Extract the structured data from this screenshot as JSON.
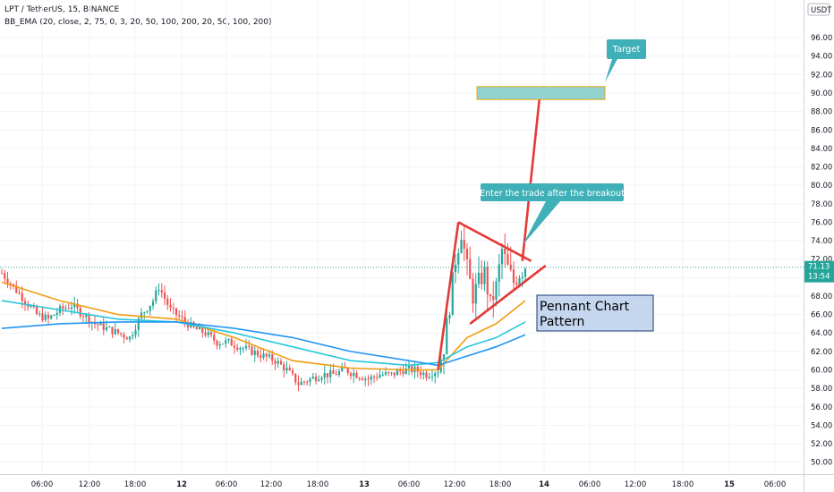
{
  "chart_data": {
    "type": "candlestick",
    "symbol_line": "LPT / TetherUS, 15, BINANCE",
    "indicator_line": "BB_EMA (20, close, 2, 75, 0, 3, 20, 50, 100, 200, 20, 50, 100, 200)",
    "currency": "USDT",
    "y_ticks": [
      "96.00",
      "94.00",
      "92.00",
      "90.00",
      "88.00",
      "86.00",
      "84.00",
      "82.00",
      "80.00",
      "78.00",
      "76.00",
      "74.00",
      "72.00",
      "70.00",
      "68.00",
      "66.00",
      "64.00",
      "62.00",
      "60.00",
      "58.00",
      "56.00",
      "54.00",
      "52.00",
      "50.00"
    ],
    "ylim": [
      49,
      99.5
    ],
    "x_ticks": [
      "06:00",
      "12:00",
      "18:00",
      "12",
      "06:00",
      "12:00",
      "18:00",
      "13",
      "06:00",
      "12:00",
      "18:00",
      "14",
      "06:00",
      "12:00",
      "18:00",
      "15",
      "06:00"
    ],
    "x_tick_index": [
      0,
      1,
      2,
      3,
      4,
      5,
      6,
      7,
      8,
      9,
      10,
      11,
      12,
      13,
      14,
      15,
      16
    ],
    "last_price": "71.13",
    "countdown": "13:54",
    "price_path": [
      [
        0,
        70.5
      ],
      [
        4,
        69.0
      ],
      [
        8,
        67.5
      ],
      [
        12,
        66.0
      ],
      [
        16,
        65.5
      ],
      [
        20,
        66.5
      ],
      [
        24,
        67.0
      ],
      [
        28,
        66.0
      ],
      [
        32,
        65.0
      ],
      [
        36,
        64.5
      ],
      [
        40,
        64.0
      ],
      [
        44,
        63.5
      ],
      [
        48,
        66.0
      ],
      [
        52,
        67.5
      ],
      [
        54,
        69.0
      ],
      [
        58,
        66.5
      ],
      [
        62,
        65.5
      ],
      [
        66,
        64.5
      ],
      [
        70,
        64.0
      ],
      [
        74,
        63.0
      ],
      [
        78,
        63.0
      ],
      [
        82,
        62.5
      ],
      [
        86,
        62.0
      ],
      [
        90,
        61.5
      ],
      [
        94,
        61.0
      ],
      [
        98,
        60.0
      ],
      [
        102,
        58.5
      ],
      [
        106,
        59.0
      ],
      [
        110,
        59.5
      ],
      [
        114,
        59.5
      ],
      [
        118,
        60.0
      ],
      [
        122,
        59.5
      ],
      [
        126,
        59.0
      ],
      [
        130,
        59.5
      ],
      [
        134,
        59.5
      ],
      [
        138,
        60.0
      ],
      [
        142,
        60.0
      ],
      [
        146,
        59.5
      ],
      [
        150,
        60.0
      ],
      [
        152,
        62.5
      ],
      [
        154,
        67.0
      ],
      [
        156,
        72.0
      ],
      [
        158,
        75.0
      ],
      [
        160,
        71.0
      ],
      [
        162,
        68.0
      ],
      [
        164,
        69.5
      ],
      [
        166,
        70.5
      ],
      [
        168,
        67.0
      ],
      [
        170,
        69.0
      ],
      [
        172,
        73.0
      ],
      [
        174,
        71.0
      ],
      [
        176,
        69.5
      ],
      [
        178,
        70.5
      ],
      [
        180,
        71.13
      ]
    ],
    "ema_series": [
      {
        "color": "#f39c12",
        "values": [
          [
            0,
            69.5
          ],
          [
            20,
            67.5
          ],
          [
            40,
            66.0
          ],
          [
            60,
            65.5
          ],
          [
            80,
            63.5
          ],
          [
            100,
            61.0
          ],
          [
            120,
            60.2
          ],
          [
            140,
            60.0
          ],
          [
            150,
            60.0
          ],
          [
            160,
            63.5
          ],
          [
            170,
            65.0
          ],
          [
            180,
            67.5
          ]
        ]
      },
      {
        "color": "#26c6da",
        "values": [
          [
            0,
            67.5
          ],
          [
            20,
            66.5
          ],
          [
            40,
            65.5
          ],
          [
            60,
            65.2
          ],
          [
            80,
            64.0
          ],
          [
            100,
            62.5
          ],
          [
            120,
            61.0
          ],
          [
            140,
            60.5
          ],
          [
            150,
            60.8
          ],
          [
            160,
            62.5
          ],
          [
            170,
            63.5
          ],
          [
            180,
            65.2
          ]
        ]
      },
      {
        "color": "#2196f3",
        "values": [
          [
            0,
            64.5
          ],
          [
            20,
            65.0
          ],
          [
            40,
            65.2
          ],
          [
            60,
            65.2
          ],
          [
            80,
            64.5
          ],
          [
            100,
            63.5
          ],
          [
            120,
            62.0
          ],
          [
            140,
            61.0
          ],
          [
            150,
            60.5
          ],
          [
            160,
            61.5
          ],
          [
            170,
            62.5
          ],
          [
            180,
            63.8
          ]
        ]
      }
    ],
    "annotations": {
      "target_label": "Target",
      "target_level": 90.0,
      "enter_label": "Enter the trade after the breakout",
      "pattern_label": "Pennant Chart Pattern",
      "flagpole": [
        [
          150,
          60.0
        ],
        [
          157,
          76.0
        ]
      ],
      "pennant_upper": [
        [
          157,
          76.0
        ],
        [
          182,
          71.8
        ]
      ],
      "pennant_lower": [
        [
          161,
          65.0
        ],
        [
          187,
          71.3
        ]
      ],
      "projection": [
        [
          179,
          71.8
        ],
        [
          185,
          89.8
        ]
      ]
    },
    "colors": {
      "up": "#26a69a",
      "down": "#ef5350",
      "drawing": "#e53935",
      "box_fill": "#c5d7ef",
      "box_border": "#1a3a6e",
      "callout": "#3fb0b8",
      "target_box": "#92d3cf",
      "target_border": "#e6a817"
    }
  }
}
